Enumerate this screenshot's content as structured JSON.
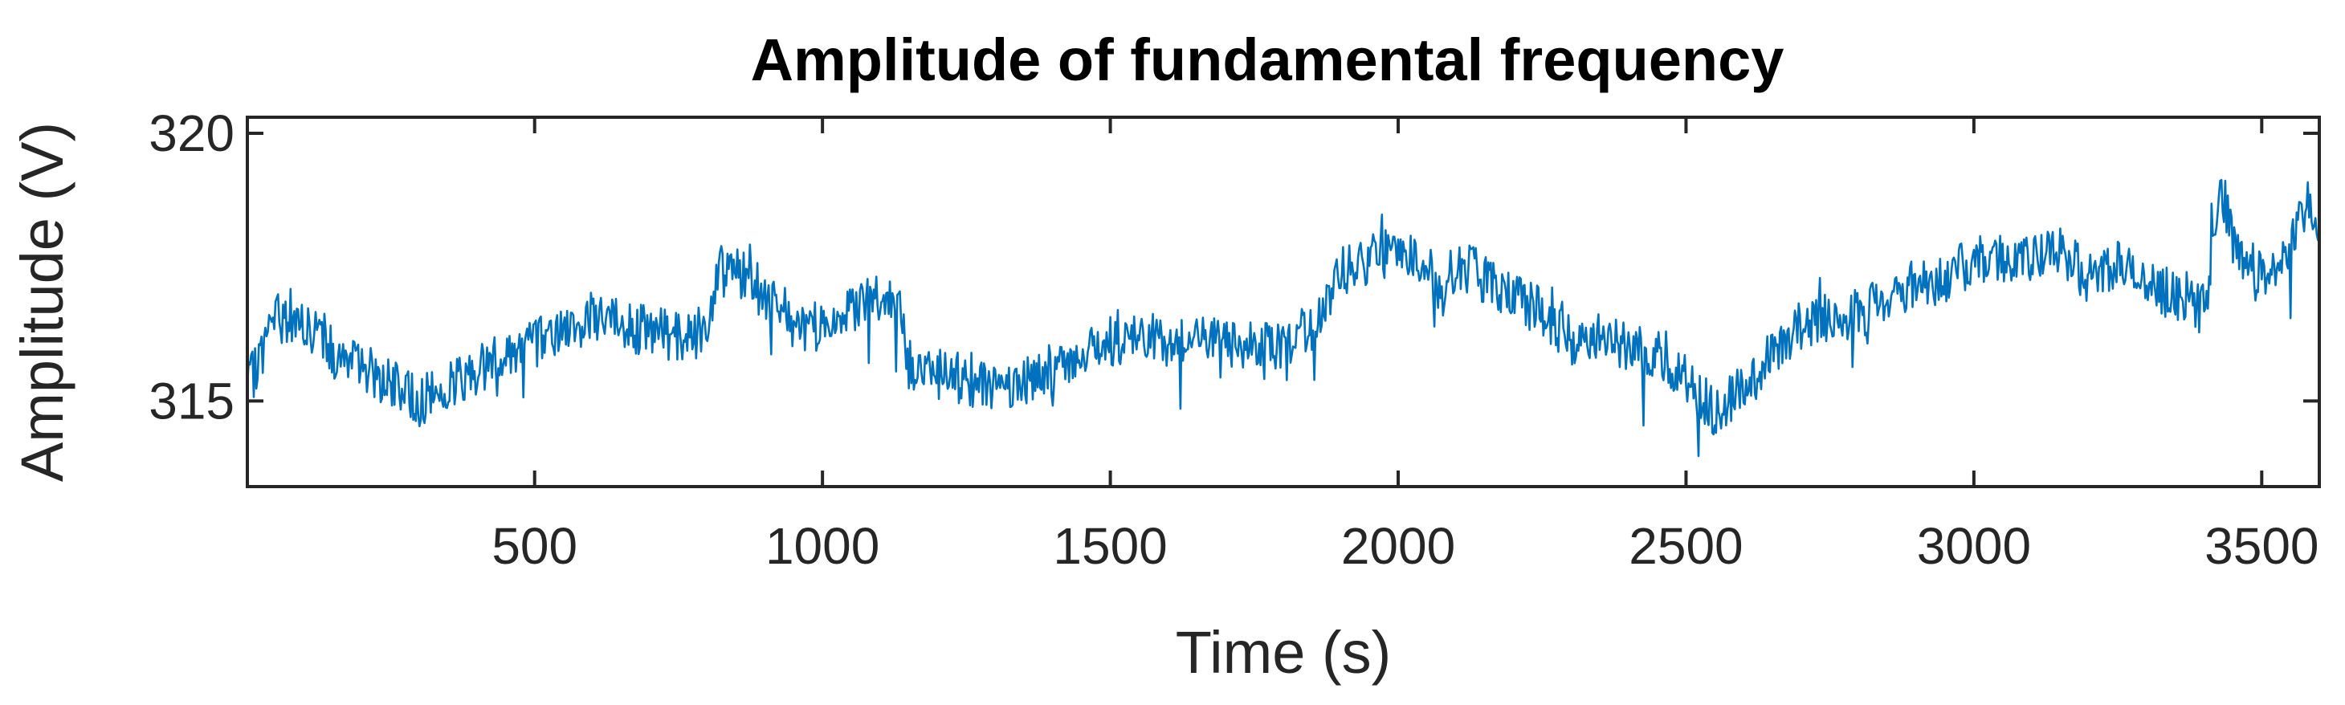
{
  "chart_data": {
    "type": "line",
    "title": "Amplitude of fundamental frequency",
    "xlabel": "Time (s)",
    "ylabel": "Amplitude (V)",
    "xlim": [
      1,
      3600
    ],
    "ylim": [
      313.4,
      320.3
    ],
    "xticks": [
      500,
      1000,
      1500,
      2000,
      2500,
      3000,
      3500
    ],
    "yticks": [
      315,
      320
    ],
    "grid": false,
    "legend": "none",
    "series": [
      {
        "color": "#0072BD",
        "x": [
          1,
          50,
          100,
          150,
          200,
          250,
          300,
          350,
          400,
          450,
          500,
          550,
          600,
          650,
          700,
          750,
          800,
          820,
          850,
          900,
          950,
          1000,
          1050,
          1100,
          1130,
          1150,
          1200,
          1250,
          1300,
          1350,
          1400,
          1450,
          1500,
          1550,
          1600,
          1650,
          1700,
          1750,
          1800,
          1850,
          1880,
          1900,
          1950,
          2000,
          2050,
          2080,
          2100,
          2150,
          2200,
          2250,
          2300,
          2350,
          2400,
          2450,
          2500,
          2550,
          2600,
          2650,
          2700,
          2750,
          2800,
          2850,
          2900,
          2950,
          3000,
          3050,
          3100,
          3150,
          3200,
          3250,
          3300,
          3350,
          3400,
          3430,
          3450,
          3500,
          3550,
          3580,
          3600
        ],
        "y": [
          315.2,
          316.6,
          316.4,
          315.9,
          315.7,
          315.3,
          315.0,
          315.3,
          315.6,
          315.9,
          316.1,
          316.3,
          316.6,
          316.4,
          316.3,
          316.2,
          316.3,
          317.6,
          317.4,
          317.0,
          316.3,
          316.4,
          316.7,
          316.9,
          317.0,
          315.7,
          315.5,
          315.4,
          315.2,
          315.4,
          315.6,
          315.9,
          316.1,
          316.2,
          316.1,
          316.2,
          316.0,
          316.1,
          316.0,
          316.4,
          316.8,
          317.4,
          317.6,
          317.9,
          317.6,
          316.8,
          317.6,
          317.3,
          316.9,
          316.7,
          316.1,
          316.3,
          316.0,
          315.9,
          315.4,
          314.8,
          315.2,
          315.9,
          316.4,
          316.6,
          316.6,
          317.0,
          317.2,
          317.3,
          317.6,
          317.7,
          317.6,
          317.8,
          317.3,
          317.6,
          317.1,
          317.0,
          316.7,
          319.0,
          318.0,
          317.3,
          317.8,
          318.7,
          318.2
        ]
      }
    ]
  }
}
